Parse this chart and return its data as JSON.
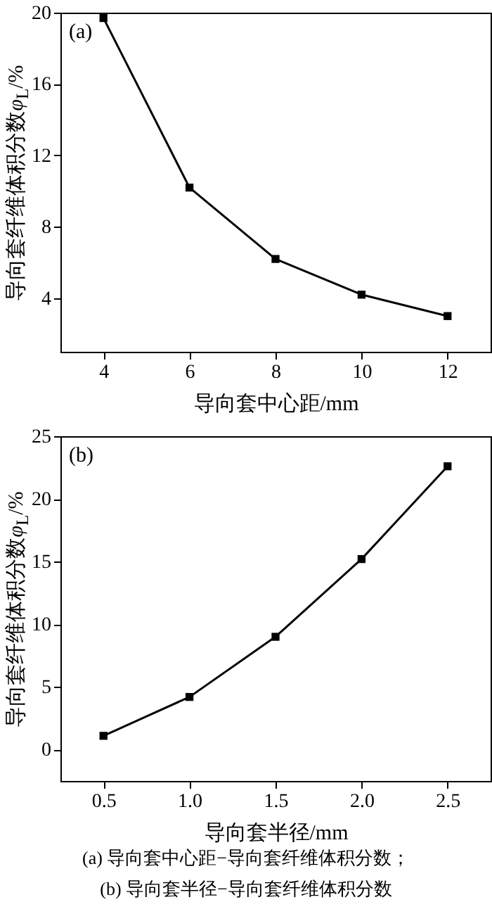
{
  "chart_data": [
    {
      "type": "line",
      "title": "(a)",
      "xlabel": "导向套中心距/mm",
      "ylabel": "导向套纤维体积分数φ$_{L}$/%",
      "x": [
        4,
        6,
        8,
        10,
        12
      ],
      "xlim": [
        3,
        13
      ],
      "xticks": [
        4,
        6,
        8,
        10,
        12
      ],
      "ylim": [
        1,
        20
      ],
      "yticks": [
        4,
        8,
        12,
        16,
        20
      ],
      "marker": "square",
      "line_style": "solid",
      "series": [
        {
          "color": "#000000",
          "values": [
            19.7,
            10.2,
            6.2,
            4.2,
            3.0
          ]
        }
      ]
    },
    {
      "type": "line",
      "title": "(b)",
      "xlabel": "导向套半径/mm",
      "ylabel": "导向套纤维体积分数φ$_{L}$/%",
      "x": [
        0.5,
        1.0,
        1.5,
        2.0,
        2.5
      ],
      "xlim": [
        0.25,
        2.75
      ],
      "xticks": [
        0.5,
        {
          "value": 1,
          "label": "1.0"
        },
        1.5,
        {
          "value": 2,
          "label": "2.0"
        },
        2.5
      ],
      "ylim": [
        -2.5,
        25
      ],
      "yticks": [
        0,
        5,
        10,
        15,
        20,
        25
      ],
      "marker": "square",
      "line_style": "solid",
      "series": [
        {
          "color": "#000000",
          "values": [
            1.1,
            4.2,
            9.0,
            15.2,
            22.6
          ]
        }
      ],
      "annotations": [
        "(a) 导向套中心距−导向套纤维体积分数；",
        "(b) 导向套半径−导向套纤维体积分数"
      ]
    }
  ]
}
